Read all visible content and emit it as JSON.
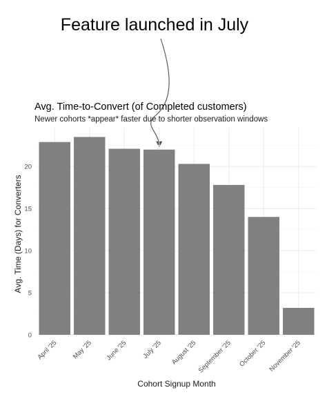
{
  "annotation": {
    "text": "Feature launched in July",
    "target_category": "July '25"
  },
  "colors": {
    "bar": "#808080",
    "grid": "#ebebeb",
    "arrow": "#4d4d4d",
    "background": "#ffffff"
  },
  "chart_data": {
    "type": "bar",
    "title": "Avg. Time-to-Convert (of Completed customers)",
    "subtitle": "Newer cohorts *appear* faster due to shorter observation windows",
    "xlabel": "Cohort Signup Month",
    "ylabel": "Avg. Time (Days) for Converters",
    "categories": [
      "April '25",
      "May '25",
      "June '25",
      "July '25",
      "August '25",
      "September '25",
      "October '25",
      "November '25"
    ],
    "values": [
      22.9,
      23.5,
      22.1,
      22.0,
      20.3,
      17.8,
      14.0,
      3.2
    ],
    "yticks": [
      0,
      5,
      10,
      15,
      20
    ],
    "ylim": [
      0,
      24.6
    ],
    "grid": true,
    "legend": "none"
  }
}
